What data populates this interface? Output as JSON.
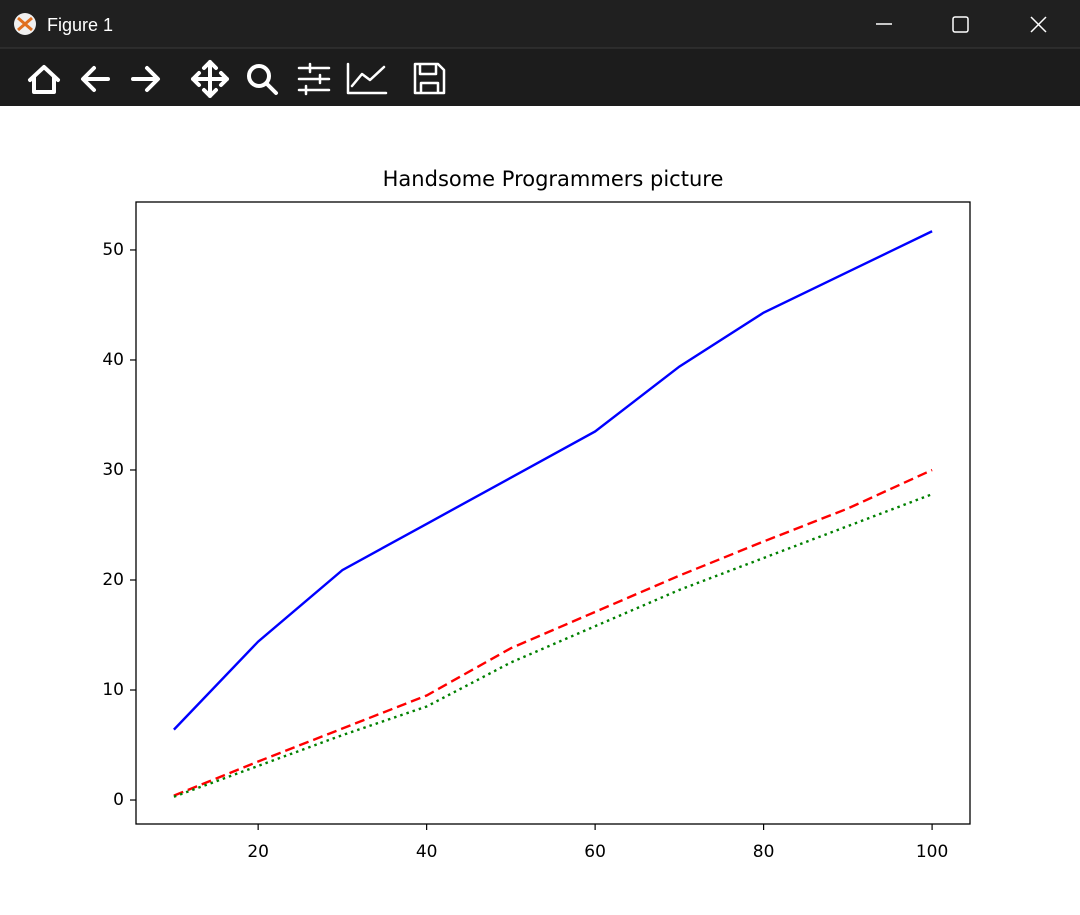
{
  "window": {
    "title": "Figure 1"
  },
  "chart_data": {
    "type": "line",
    "title": "Handsome Programmers picture",
    "x": [
      10,
      20,
      30,
      40,
      50,
      60,
      70,
      80,
      90,
      100
    ],
    "series": [
      {
        "color": "#0000ff",
        "linestyle": "solid",
        "values": [
          6.4,
          14.4,
          20.9,
          25.1,
          29.3,
          33.5,
          39.4,
          44.3,
          48.0,
          51.7
        ]
      },
      {
        "color": "#ff0000",
        "linestyle": "dashed",
        "values": [
          0.4,
          3.5,
          6.5,
          9.5,
          13.8,
          17.1,
          20.4,
          23.5,
          26.5,
          30.0
        ]
      },
      {
        "color": "#008000",
        "linestyle": "dotted",
        "values": [
          0.3,
          3.1,
          5.9,
          8.5,
          12.5,
          15.8,
          19.1,
          22.0,
          24.9,
          27.8
        ]
      }
    ],
    "xlim": [
      5.5,
      104.5
    ],
    "xticks": [
      20,
      40,
      60,
      80,
      100
    ],
    "ylim": [
      -2.18,
      54.36
    ],
    "yticks": [
      0,
      10,
      20,
      30,
      40,
      50
    ]
  }
}
